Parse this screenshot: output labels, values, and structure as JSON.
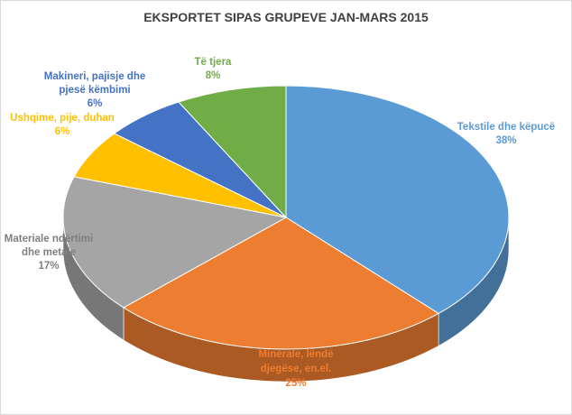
{
  "chart_data": {
    "type": "pie",
    "title": "EKSPORTET SIPAS GRUPEVE JAN-MARS 2015",
    "slices": [
      {
        "label": "Tekstile dhe këpucë",
        "value": 38,
        "value_label": "38%",
        "color": "#5b9bd5"
      },
      {
        "label": "Minerale, lëndë djegëse, en.el.",
        "value": 25,
        "value_label": "25%",
        "color": "#ed7d31"
      },
      {
        "label": "Materiale ndërtimi dhe metale",
        "value": 17,
        "value_label": "17%",
        "color": "#a5a5a5"
      },
      {
        "label": "Ushqime, pije, duhan",
        "value": 6,
        "value_label": "6%",
        "color": "#ffc000"
      },
      {
        "label": "Makineri, pajisje dhe pjesë këmbimi",
        "value": 6,
        "value_label": "6%",
        "color": "#4472c4"
      },
      {
        "label": "Të tjera",
        "value": 8,
        "value_label": "8%",
        "color": "#70ad47"
      }
    ],
    "legend": "none",
    "style": "3d"
  }
}
